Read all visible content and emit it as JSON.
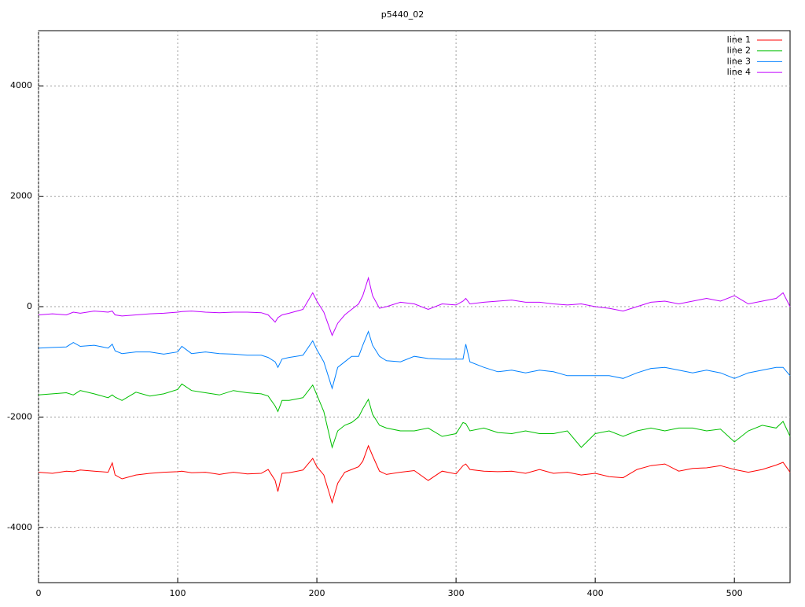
{
  "chart_data": {
    "type": "line",
    "title": "p5440_02",
    "x": [
      0,
      10,
      20,
      25,
      30,
      40,
      50,
      53,
      55,
      60,
      70,
      80,
      90,
      100,
      103,
      110,
      120,
      130,
      140,
      150,
      160,
      165,
      170,
      172,
      175,
      180,
      190,
      197,
      200,
      205,
      211,
      215,
      220,
      225,
      230,
      233,
      237,
      240,
      245,
      250,
      260,
      270,
      280,
      290,
      300,
      305,
      307,
      310,
      320,
      330,
      340,
      350,
      360,
      370,
      380,
      390,
      400,
      410,
      420,
      430,
      440,
      450,
      460,
      470,
      480,
      490,
      500,
      510,
      520,
      530,
      535,
      540
    ],
    "series": [
      {
        "name": "line 1",
        "color": "#ff0000",
        "values": [
          -3000,
          -3020,
          -2980,
          -2990,
          -2960,
          -2980,
          -3000,
          -2830,
          -3050,
          -3120,
          -3050,
          -3020,
          -3000,
          -2990,
          -2980,
          -3010,
          -3000,
          -3040,
          -3000,
          -3030,
          -3020,
          -2950,
          -3150,
          -3350,
          -3020,
          -3010,
          -2960,
          -2750,
          -2900,
          -3050,
          -3550,
          -3200,
          -3000,
          -2950,
          -2900,
          -2800,
          -2520,
          -2700,
          -2980,
          -3040,
          -3000,
          -2970,
          -3150,
          -2980,
          -3030,
          -2880,
          -2850,
          -2950,
          -2980,
          -2990,
          -2980,
          -3020,
          -2950,
          -3020,
          -3000,
          -3050,
          -3020,
          -3080,
          -3100,
          -2950,
          -2880,
          -2850,
          -2980,
          -2930,
          -2920,
          -2880,
          -2950,
          -3000,
          -2950,
          -2870,
          -2820,
          -3000
        ]
      },
      {
        "name": "line 2",
        "color": "#00c000",
        "values": [
          -1600,
          -1580,
          -1560,
          -1600,
          -1520,
          -1580,
          -1650,
          -1600,
          -1640,
          -1700,
          -1550,
          -1620,
          -1580,
          -1500,
          -1400,
          -1520,
          -1560,
          -1600,
          -1520,
          -1560,
          -1580,
          -1620,
          -1800,
          -1900,
          -1700,
          -1700,
          -1650,
          -1420,
          -1600,
          -1900,
          -2550,
          -2250,
          -2150,
          -2100,
          -2000,
          -1850,
          -1680,
          -1950,
          -2150,
          -2200,
          -2250,
          -2250,
          -2200,
          -2350,
          -2300,
          -2100,
          -2120,
          -2250,
          -2200,
          -2280,
          -2300,
          -2250,
          -2300,
          -2300,
          -2250,
          -2550,
          -2300,
          -2250,
          -2350,
          -2250,
          -2200,
          -2250,
          -2200,
          -2200,
          -2250,
          -2220,
          -2450,
          -2250,
          -2150,
          -2200,
          -2080,
          -2350
        ]
      },
      {
        "name": "line 3",
        "color": "#0080ff",
        "values": [
          -750,
          -740,
          -730,
          -650,
          -720,
          -700,
          -750,
          -680,
          -800,
          -850,
          -820,
          -820,
          -860,
          -820,
          -720,
          -850,
          -820,
          -850,
          -860,
          -880,
          -880,
          -920,
          -1000,
          -1100,
          -950,
          -920,
          -880,
          -620,
          -780,
          -1000,
          -1480,
          -1100,
          -1000,
          -900,
          -900,
          -700,
          -450,
          -700,
          -900,
          -980,
          -1000,
          -900,
          -940,
          -950,
          -950,
          -950,
          -680,
          -1000,
          -1100,
          -1180,
          -1150,
          -1200,
          -1150,
          -1180,
          -1250,
          -1250,
          -1250,
          -1250,
          -1300,
          -1200,
          -1120,
          -1100,
          -1150,
          -1200,
          -1150,
          -1200,
          -1300,
          -1200,
          -1150,
          -1100,
          -1100,
          -1250
        ]
      },
      {
        "name": "line 4",
        "color": "#c000ff",
        "values": [
          -150,
          -130,
          -150,
          -100,
          -120,
          -80,
          -100,
          -80,
          -150,
          -170,
          -150,
          -130,
          -120,
          -100,
          -90,
          -80,
          -100,
          -110,
          -100,
          -100,
          -110,
          -150,
          -280,
          -200,
          -150,
          -120,
          -50,
          250,
          100,
          -100,
          -520,
          -300,
          -150,
          -50,
          50,
          200,
          520,
          200,
          -30,
          0,
          80,
          50,
          -50,
          50,
          30,
          100,
          150,
          50,
          80,
          100,
          120,
          80,
          80,
          50,
          30,
          50,
          0,
          -30,
          -80,
          0,
          80,
          100,
          50,
          100,
          150,
          100,
          200,
          50,
          100,
          150,
          250,
          0
        ]
      }
    ],
    "xlim": [
      0,
      540
    ],
    "xticks": [
      0,
      100,
      200,
      300,
      400,
      500
    ],
    "ylim": [
      -5000,
      5000
    ],
    "yticks": [
      -4000,
      -2000,
      0,
      2000,
      4000
    ],
    "grid": true,
    "legend": "top-right"
  }
}
